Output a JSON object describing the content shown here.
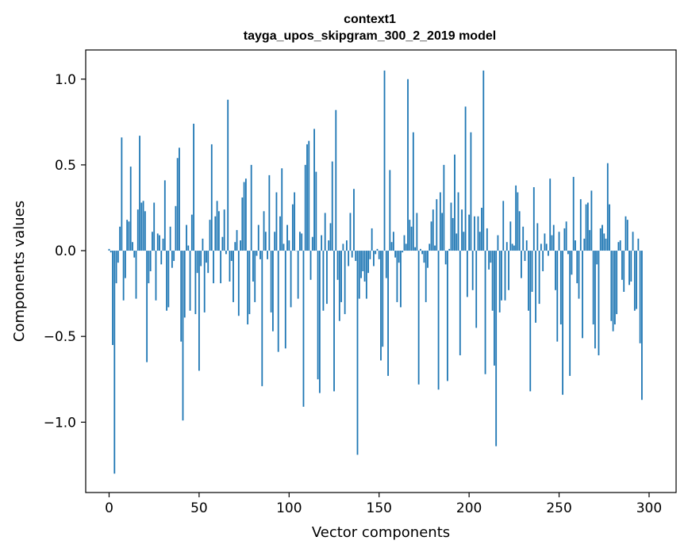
{
  "chart_data": {
    "type": "bar",
    "title_line1": "context1",
    "title_line2": "tayga_upos_skipgram_300_2_2019 model",
    "xlabel": "Vector components",
    "ylabel": "Components values",
    "xlim": [
      -13,
      315
    ],
    "ylim": [
      -1.41,
      1.17
    ],
    "xticks": [
      0,
      50,
      100,
      150,
      200,
      250,
      300
    ],
    "xtick_labels": [
      "0",
      "50",
      "100",
      "150",
      "200",
      "250",
      "300"
    ],
    "yticks": [
      -1.0,
      -0.5,
      0.0,
      0.5,
      1.0
    ],
    "ytick_labels": [
      "−1.0",
      "−0.5",
      "0.0",
      "0.5",
      "1.0"
    ],
    "bar_color": "#1f77b4",
    "grid": false,
    "legend": "none",
    "values": [
      0.01,
      -0.01,
      -0.55,
      -1.3,
      -0.19,
      -0.07,
      0.14,
      0.66,
      -0.29,
      -0.16,
      0.18,
      0.17,
      0.49,
      0.05,
      -0.04,
      -0.28,
      0.24,
      0.67,
      0.28,
      0.29,
      0.23,
      -0.65,
      -0.19,
      -0.12,
      0.11,
      0.28,
      -0.29,
      0.1,
      0.09,
      -0.08,
      0.07,
      0.41,
      -0.35,
      -0.33,
      0.14,
      -0.1,
      -0.06,
      0.26,
      0.54,
      0.6,
      -0.53,
      -0.99,
      -0.39,
      0.15,
      0.03,
      -0.35,
      0.21,
      0.74,
      -0.37,
      -0.13,
      -0.7,
      -0.09,
      0.07,
      -0.36,
      -0.07,
      -0.13,
      0.18,
      0.62,
      -0.19,
      0.2,
      0.29,
      0.23,
      -0.19,
      0.08,
      0.24,
      -0.02,
      0.88,
      -0.18,
      -0.06,
      -0.3,
      0.05,
      0.12,
      -0.38,
      0.06,
      0.31,
      0.4,
      0.42,
      -0.43,
      -0.37,
      0.5,
      -0.18,
      -0.3,
      -0.03,
      0.15,
      -0.05,
      -0.79,
      0.23,
      0.11,
      -0.05,
      0.44,
      -0.36,
      -0.47,
      0.11,
      0.34,
      -0.59,
      0.2,
      0.48,
      0.04,
      -0.57,
      0.15,
      0.06,
      -0.33,
      0.27,
      0.34,
      0.0,
      -0.28,
      0.11,
      0.1,
      -0.91,
      0.5,
      0.62,
      0.64,
      -0.17,
      0.08,
      0.71,
      0.46,
      -0.75,
      -0.83,
      0.09,
      -0.35,
      0.22,
      -0.31,
      0.06,
      0.16,
      0.52,
      -0.82,
      0.82,
      -0.17,
      -0.41,
      -0.3,
      0.04,
      -0.37,
      0.06,
      -0.09,
      0.22,
      -0.04,
      0.36,
      -0.06,
      -1.19,
      -0.28,
      -0.16,
      -0.12,
      -0.18,
      -0.28,
      -0.13,
      -0.05,
      0.13,
      -0.09,
      -0.02,
      0.01,
      -0.05,
      -0.64,
      -0.56,
      1.05,
      -0.16,
      -0.73,
      0.47,
      0.05,
      0.11,
      -0.04,
      -0.3,
      -0.07,
      -0.33,
      -0.01,
      0.09,
      0.04,
      1.0,
      0.18,
      0.14,
      0.69,
      0.02,
      0.22,
      -0.78,
      0.01,
      -0.02,
      -0.07,
      -0.3,
      -0.1,
      0.04,
      0.17,
      0.24,
      0.03,
      0.3,
      -0.81,
      0.34,
      0.22,
      0.5,
      -0.08,
      -0.76,
      0.01,
      0.28,
      0.19,
      0.56,
      0.1,
      0.34,
      -0.61,
      0.24,
      0.11,
      0.84,
      -0.27,
      0.21,
      0.69,
      -0.23,
      0.2,
      -0.45,
      0.2,
      0.11,
      0.25,
      1.05,
      -0.72,
      0.13,
      -0.11,
      -0.07,
      -0.35,
      -0.67,
      -1.14,
      0.09,
      -0.36,
      -0.29,
      0.29,
      -0.29,
      0.05,
      -0.23,
      0.17,
      0.04,
      0.03,
      0.38,
      0.34,
      0.23,
      -0.16,
      0.14,
      -0.06,
      0.06,
      -0.35,
      -0.82,
      -0.24,
      0.37,
      -0.42,
      0.16,
      -0.31,
      0.04,
      -0.12,
      0.1,
      0.04,
      -0.03,
      0.42,
      0.09,
      0.15,
      -0.23,
      -0.53,
      0.11,
      -0.43,
      -0.84,
      0.13,
      0.17,
      -0.02,
      -0.73,
      -0.14,
      0.43,
      0.06,
      -0.19,
      -0.28,
      0.3,
      -0.51,
      0.07,
      0.27,
      0.28,
      0.12,
      0.35,
      -0.43,
      -0.57,
      -0.08,
      -0.61,
      0.13,
      0.15,
      0.1,
      0.07,
      0.51,
      0.27,
      -0.41,
      -0.47,
      -0.43,
      -0.37,
      0.05,
      0.06,
      -0.17,
      -0.24,
      0.2,
      0.18,
      -0.2,
      -0.18,
      0.11,
      -0.35,
      -0.34,
      0.07,
      -0.54,
      -0.87
    ]
  }
}
